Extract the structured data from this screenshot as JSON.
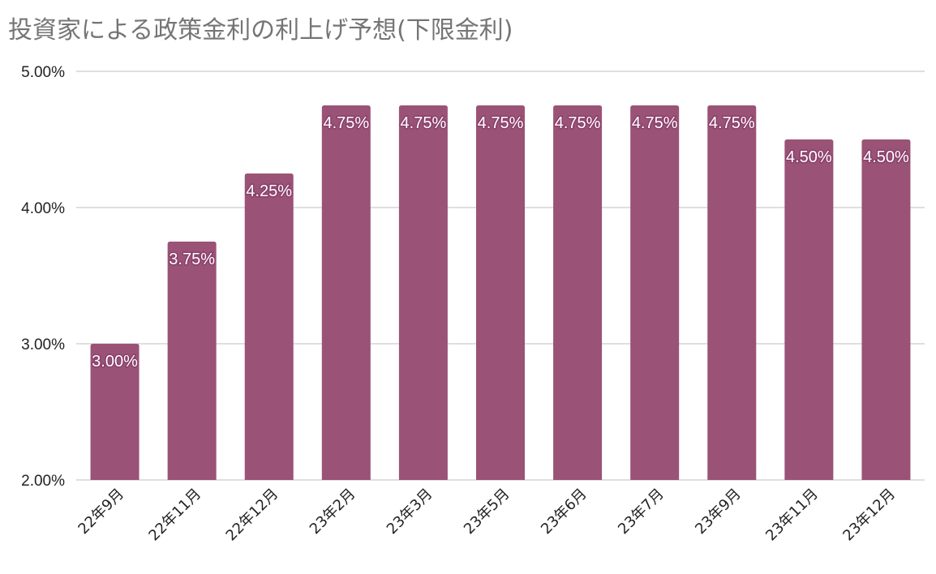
{
  "chart_data": {
    "type": "bar",
    "title": "投資家による政策金利の利上げ予想(下限金利)",
    "xlabel": "",
    "ylabel": "",
    "categories": [
      "22年9月",
      "22年11月",
      "22年12月",
      "23年2月",
      "23年3月",
      "23年5月",
      "23年6月",
      "23年7月",
      "23年9月",
      "23年11月",
      "23年12月"
    ],
    "values": [
      3.0,
      3.75,
      4.25,
      4.75,
      4.75,
      4.75,
      4.75,
      4.75,
      4.75,
      4.5,
      4.5
    ],
    "data_labels": [
      "3.00%",
      "3.75%",
      "4.25%",
      "4.75%",
      "4.75%",
      "4.75%",
      "4.75%",
      "4.75%",
      "4.75%",
      "4.50%",
      "4.50%"
    ],
    "ylim": [
      2.0,
      5.0
    ],
    "yticks": [
      2.0,
      3.0,
      4.0,
      5.0
    ],
    "ytick_labels": [
      "2.00%",
      "3.00%",
      "4.00%",
      "5.00%"
    ],
    "grid": true,
    "legend": "none",
    "bar_color": "#9a5276",
    "grid_color": "#cccccc"
  }
}
